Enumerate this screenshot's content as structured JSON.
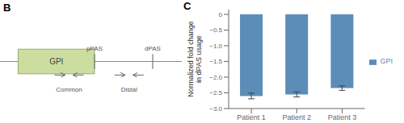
{
  "chart_data": {
    "type": "bar",
    "categories": [
      "Patient 1",
      "Patient 2",
      "Patient 3"
    ],
    "series": [
      {
        "name": "GPI",
        "color": "#5b8db8",
        "values": [
          -2.6,
          -2.55,
          -2.35
        ],
        "errors": [
          0.09,
          0.08,
          0.07
        ]
      }
    ],
    "ylim": [
      -3.0,
      0.15
    ],
    "yticks": [
      0,
      {
        "value": -0.5,
        "label": "−0.5"
      },
      {
        "value": -1.0,
        "label": "−1.0"
      },
      {
        "value": -1.5,
        "label": "−1.5"
      },
      {
        "value": -2.0,
        "label": "−2.0"
      },
      {
        "value": -2.5,
        "label": "−2.5"
      },
      {
        "value": -3.0,
        "label": "−3.0"
      }
    ],
    "y_label": "Normalized fold change\nin dPAS usage",
    "legend": "right",
    "annotations": [
      "B",
      "GPI",
      "pPAS",
      "dPAS",
      "Common",
      "Distal",
      "C"
    ]
  }
}
